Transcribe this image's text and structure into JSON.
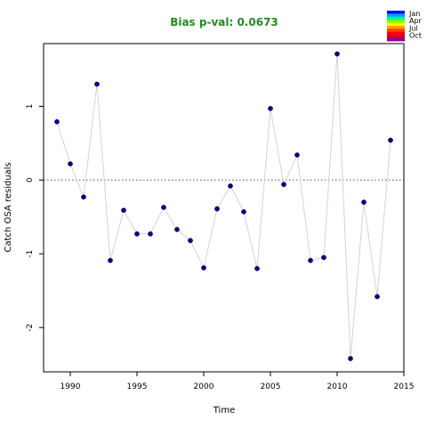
{
  "chart_data": {
    "type": "scatter",
    "title": "Bias p-val: 0.0673",
    "title_color": "#228b22",
    "xlabel": "Time",
    "ylabel": "Catch OSA residuals",
    "xlim": [
      1988,
      2015
    ],
    "ylim": [
      -2.6,
      1.85
    ],
    "xticks": [
      1990,
      1995,
      2000,
      2005,
      2010,
      2015
    ],
    "yticks": [
      -2,
      -1,
      0,
      1
    ],
    "reference_line": 0,
    "line_color": "#d3d3d3",
    "point_color": "#00008b",
    "grid": false,
    "legend_position": "top-right",
    "legend_labels": [
      "Jan",
      "Apr",
      "Jul",
      "Oct"
    ],
    "legend_colors": [
      "#0000ff",
      "#00a0ff",
      "#00ff80",
      "#80ff00",
      "#ffff00",
      "#ffa000",
      "#ff4000",
      "#ff0000",
      "#d00040",
      "#8b008b"
    ],
    "series": [
      {
        "x": [
          1989,
          1990,
          1991,
          1992,
          1993,
          1994,
          1995,
          1996,
          1997,
          1998,
          1999,
          2000,
          2001,
          2002,
          2003,
          2004,
          2005,
          2006,
          2007,
          2008,
          2009,
          2010,
          2011,
          2012,
          2013,
          2014
        ],
        "y": [
          0.79,
          0.22,
          -0.23,
          1.3,
          -1.09,
          -0.41,
          -0.73,
          -0.73,
          -0.37,
          -0.67,
          -0.82,
          -1.19,
          -0.39,
          -0.08,
          -0.43,
          -1.2,
          0.97,
          -0.06,
          0.34,
          -1.09,
          -1.05,
          1.71,
          -2.42,
          -0.3,
          -1.58,
          0.54
        ]
      }
    ]
  }
}
